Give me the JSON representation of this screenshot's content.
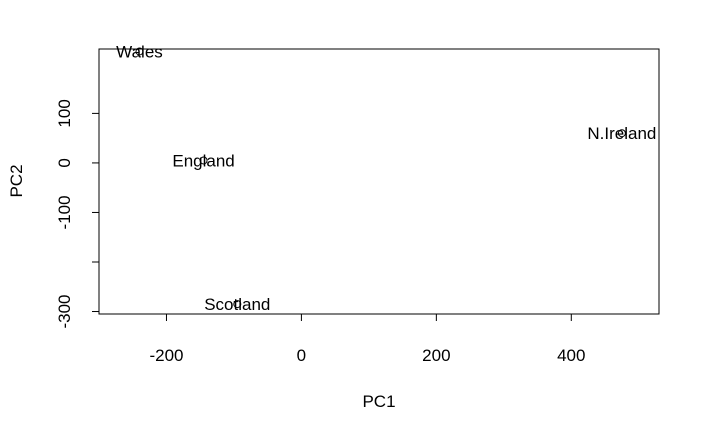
{
  "chart_data": {
    "type": "scatter",
    "title": "",
    "xlabel": "PC1",
    "ylabel": "PC2",
    "xlim": [
      -300,
      530
    ],
    "ylim": [
      -305,
      230
    ],
    "grid": false,
    "x_ticks": [
      -200,
      0,
      200,
      400
    ],
    "y_ticks": [
      -300,
      -200,
      -100,
      0,
      100
    ],
    "y_tick_labels": [
      "-300",
      "",
      "-100",
      "0",
      "100"
    ],
    "points": [
      {
        "label": "Wales",
        "x": -240,
        "y": 225
      },
      {
        "label": "England",
        "x": -145,
        "y": 5
      },
      {
        "label": "Scotland",
        "x": -95,
        "y": -285
      },
      {
        "label": "N.Ireland",
        "x": 475,
        "y": 60
      }
    ],
    "point_color": "#000000",
    "label_color": "#000000"
  }
}
